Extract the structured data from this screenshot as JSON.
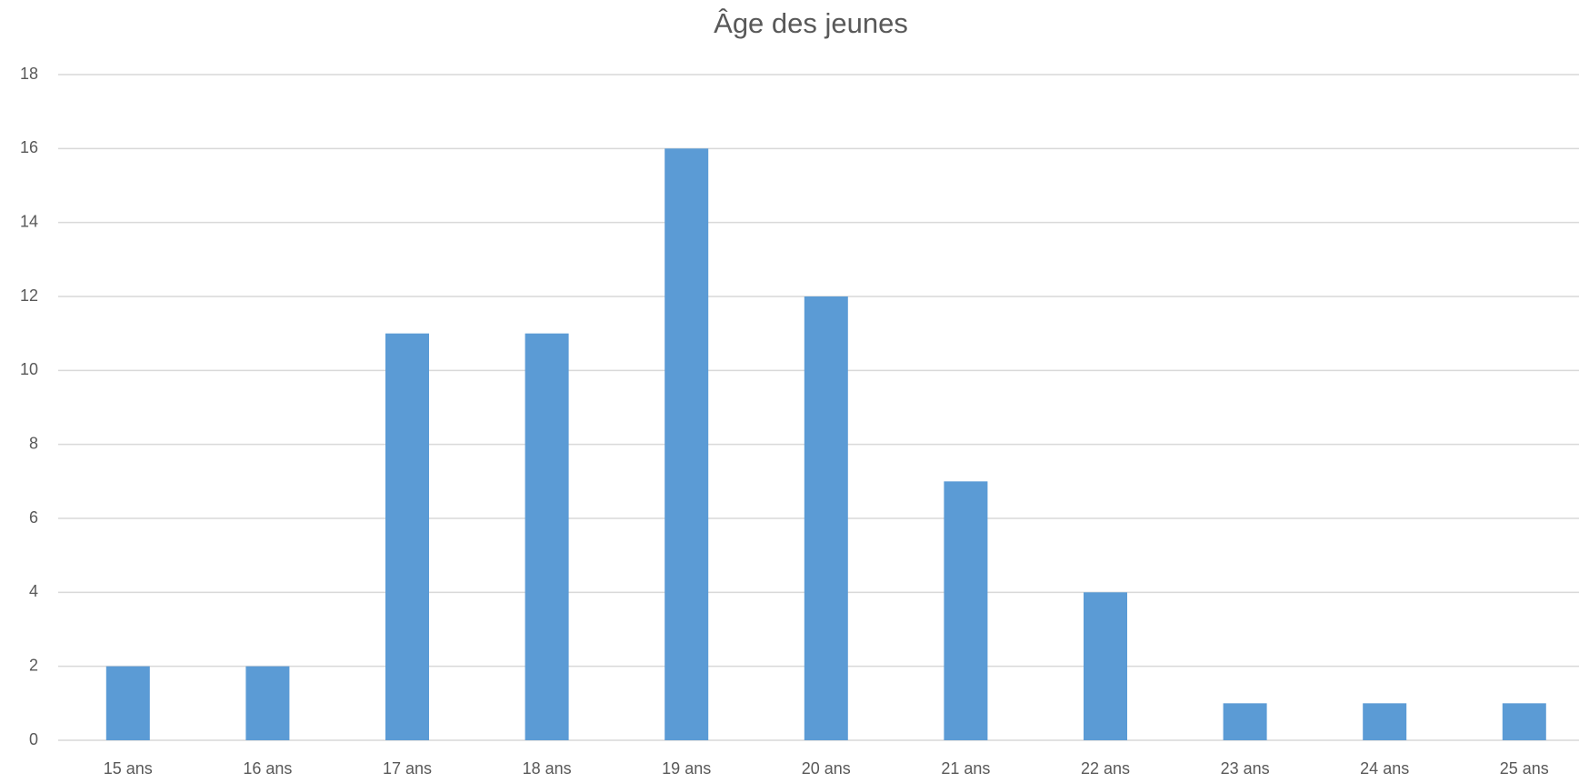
{
  "chart_data": {
    "type": "bar",
    "title": "Âge des jeunes",
    "categories": [
      "15 ans",
      "16 ans",
      "17 ans",
      "18 ans",
      "19 ans",
      "20 ans",
      "21 ans",
      "22 ans",
      "23 ans",
      "24 ans",
      "25 ans"
    ],
    "values": [
      2,
      2,
      11,
      11,
      16,
      12,
      7,
      4,
      1,
      1,
      1
    ],
    "color": "#5b9bd5",
    "ylim": [
      0,
      18
    ],
    "yticks": [
      0,
      2,
      4,
      6,
      8,
      10,
      12,
      14,
      16,
      18
    ],
    "grid": true
  }
}
